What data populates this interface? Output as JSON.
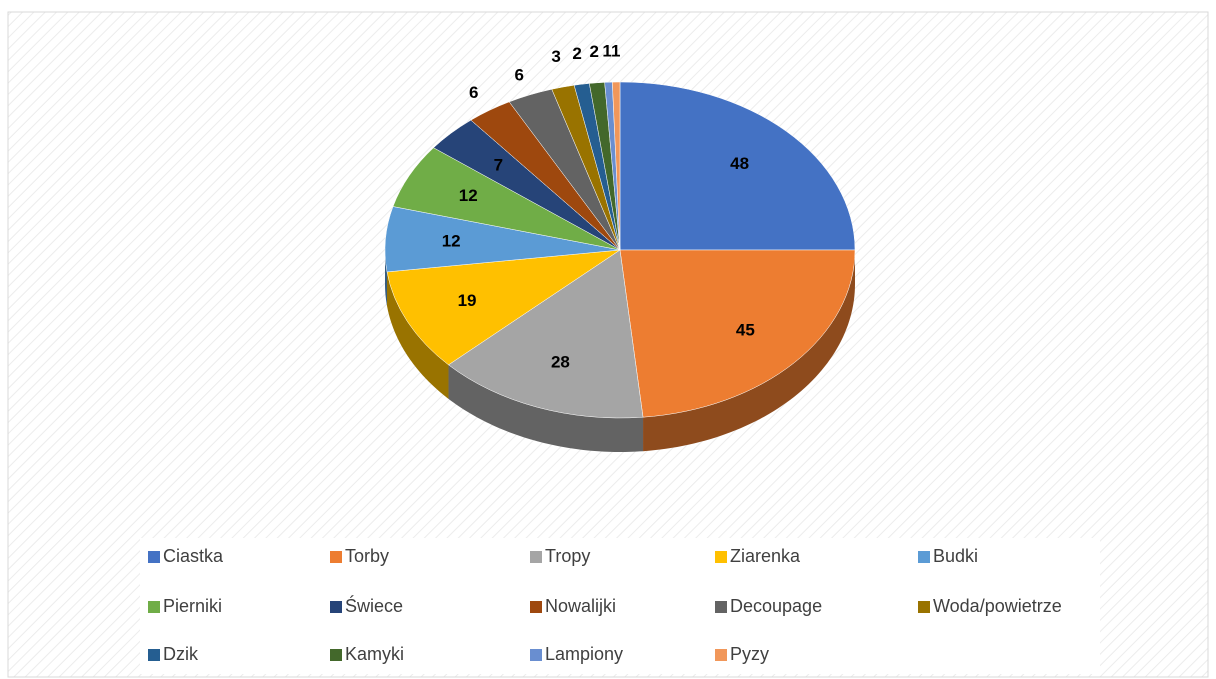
{
  "chart_data": {
    "type": "pie",
    "categories": [
      "Ciastka",
      "Torby",
      "Tropy",
      "Ziarenka",
      "Budki",
      "Pierniki",
      "Świece",
      "Nowalijki",
      "Decoupage",
      "Woda/powietrze",
      "Dzik",
      "Kamyki",
      "Lampiony",
      "Pyzy"
    ],
    "values": [
      48,
      45,
      28,
      19,
      12,
      12,
      7,
      6,
      6,
      3,
      2,
      2,
      1,
      1
    ],
    "colors": [
      "#4472c4",
      "#ed7d31",
      "#a5a5a5",
      "#ffc000",
      "#5b9bd5",
      "#70ad47",
      "#264478",
      "#9e480e",
      "#636363",
      "#997300",
      "#255e91",
      "#43682b",
      "#698ed0",
      "#f1975a"
    ],
    "legend": "bottom"
  }
}
